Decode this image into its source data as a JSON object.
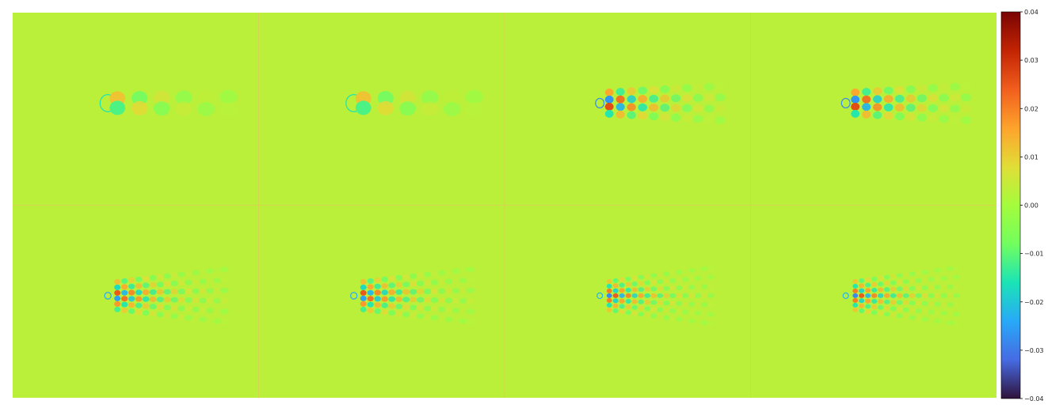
{
  "chart_data": {
    "type": "heatmap",
    "layout": "2 rows x 4 columns of field snapshots",
    "colormap": "turbo",
    "colorbar": {
      "vmin": -0.04,
      "vmax": 0.04,
      "ticks": [
        0.04,
        0.03,
        0.02,
        0.01,
        0.0,
        -0.01,
        -0.02,
        -0.03,
        -0.04
      ],
      "tick_labels": [
        "0.04",
        "0.03",
        "0.02",
        "0.01",
        "0.00",
        "−0.01",
        "−0.02",
        "−0.03",
        "−0.04"
      ]
    },
    "background_value": 0.003,
    "panels": [
      {
        "row": 1,
        "col": 1,
        "pattern": "two-row alternating vortex wake",
        "amplitude": 0.02,
        "wavelength": "long",
        "rows": 2
      },
      {
        "row": 1,
        "col": 2,
        "pattern": "two-row alternating vortex wake",
        "amplitude": 0.02,
        "wavelength": "long",
        "rows": 2
      },
      {
        "row": 1,
        "col": 3,
        "pattern": "multi-row wake",
        "amplitude": 0.035,
        "wavelength": "medium",
        "rows": 4
      },
      {
        "row": 1,
        "col": 4,
        "pattern": "multi-row wake",
        "amplitude": 0.035,
        "wavelength": "medium",
        "rows": 4
      },
      {
        "row": 2,
        "col": 1,
        "pattern": "fine-scale fan-shaped wake",
        "amplitude": 0.03,
        "wavelength": "short",
        "rows": 6
      },
      {
        "row": 2,
        "col": 2,
        "pattern": "fine-scale fan-shaped wake",
        "amplitude": 0.03,
        "wavelength": "short",
        "rows": 6
      },
      {
        "row": 2,
        "col": 3,
        "pattern": "finest-scale fan-shaped wake",
        "amplitude": 0.028,
        "wavelength": "shortest",
        "rows": 7
      },
      {
        "row": 2,
        "col": 4,
        "pattern": "finest-scale fan-shaped wake",
        "amplitude": 0.028,
        "wavelength": "shortest",
        "rows": 7
      }
    ],
    "grid": false,
    "legend": "colorbar at right"
  }
}
